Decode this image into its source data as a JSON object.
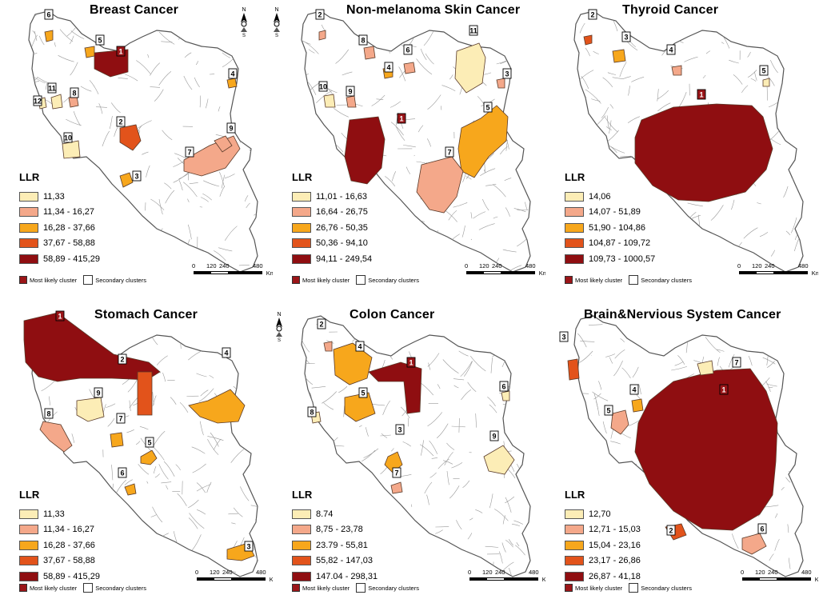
{
  "map_data": {
    "legend_heading": "LLR",
    "most_likely_label": "Most likely cluster",
    "secondary_label": "Secondary clusters",
    "scale": {
      "ticks": [
        "0",
        "120",
        "240",
        "480"
      ],
      "unit": "Km"
    },
    "colors": [
      "#fcedb6",
      "#f4a88a",
      "#f7a71c",
      "#e2531b",
      "#8f0e11"
    ],
    "north_letters": {
      "n": "N",
      "s": "S"
    }
  },
  "panels": [
    {
      "title": "Breast Cancer",
      "legend": [
        "11,33",
        "11,34 - 16,27",
        "16,28 - 37,66",
        "37,67 - 58,88",
        "58,89 - 415,29"
      ],
      "cluster_labels": [
        "1",
        "2",
        "3",
        "4",
        "5",
        "6",
        "7",
        "8",
        "9",
        "10",
        "11",
        "12"
      ]
    },
    {
      "title": "Non-melanoma Skin Cancer",
      "legend": [
        "11,01 - 16,63",
        "16,64 - 26,75",
        "26,76 - 50,35",
        "50,36 - 94,10",
        "94,11 - 249,54"
      ],
      "cluster_labels": [
        "1",
        "2",
        "3",
        "4",
        "5",
        "6",
        "7",
        "8",
        "9",
        "10",
        "11"
      ]
    },
    {
      "title": "Thyroid Cancer",
      "legend": [
        "14,06",
        "14,07 - 51,89",
        "51,90 - 104,86",
        "104,87 - 109,72",
        "109,73 - 1000,57"
      ],
      "cluster_labels": [
        "1",
        "2",
        "3",
        "4",
        "5"
      ]
    },
    {
      "title": "Stomach Cancer",
      "legend": [
        "11,33",
        "11,34 - 16,27",
        "16,28 - 37,66",
        "37,67 - 58,88",
        "58,89 - 415,29"
      ],
      "cluster_labels": [
        "1",
        "2",
        "3",
        "4",
        "5",
        "6",
        "7",
        "8",
        "9"
      ]
    },
    {
      "title": "Colon Cancer",
      "legend": [
        "8.74",
        "8,75 - 23,78",
        "23.79 - 55,81",
        "55,82 - 147,03",
        "147.04 - 298,31"
      ],
      "cluster_labels": [
        "1",
        "2",
        "3",
        "4",
        "5",
        "6",
        "7",
        "8",
        "9"
      ]
    },
    {
      "title": "Brain&Nervious System Cancer",
      "legend": [
        "12,70",
        "12,71 - 15,03",
        "15,04 - 23,16",
        "23,17 - 26,86",
        "26,87 - 41,18"
      ],
      "cluster_labels": [
        "1",
        "2",
        "3",
        "4",
        "5",
        "6",
        "7"
      ]
    }
  ]
}
